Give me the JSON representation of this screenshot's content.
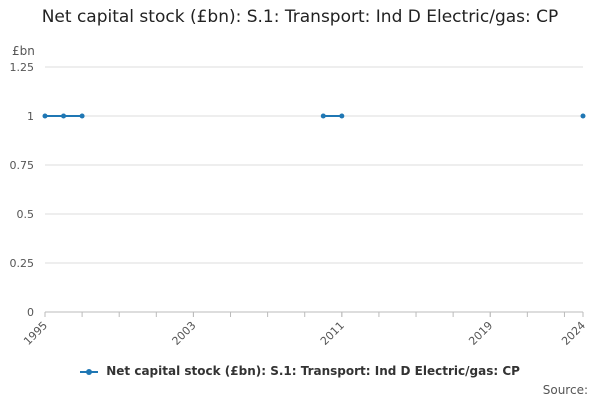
{
  "chart_data": {
    "type": "line",
    "title": "Net capital stock (£bn): S.1: Transport: Ind D Electric/gas: CP",
    "ylabel": "£bn",
    "ylim": [
      0,
      1.25
    ],
    "yticks": [
      "0",
      "0.25",
      "0.5",
      "0.75",
      "1",
      "1.25"
    ],
    "xlim": [
      1995,
      2024
    ],
    "xticks": [
      "1995",
      "2003",
      "2011",
      "2019",
      "2024"
    ],
    "grid": true,
    "legend_position": "bottom",
    "series": [
      {
        "name": "Net capital stock (£bn): S.1: Transport: Ind D Electric/gas: CP",
        "color": "#1f77b4",
        "x": [
          1995,
          1996,
          1997,
          2010,
          2011,
          2024
        ],
        "y": [
          1,
          1,
          1,
          1,
          1,
          1
        ],
        "segments": [
          [
            0,
            1,
            2
          ],
          [
            3,
            4
          ],
          [
            5
          ]
        ]
      }
    ],
    "source_label": "Source:"
  }
}
